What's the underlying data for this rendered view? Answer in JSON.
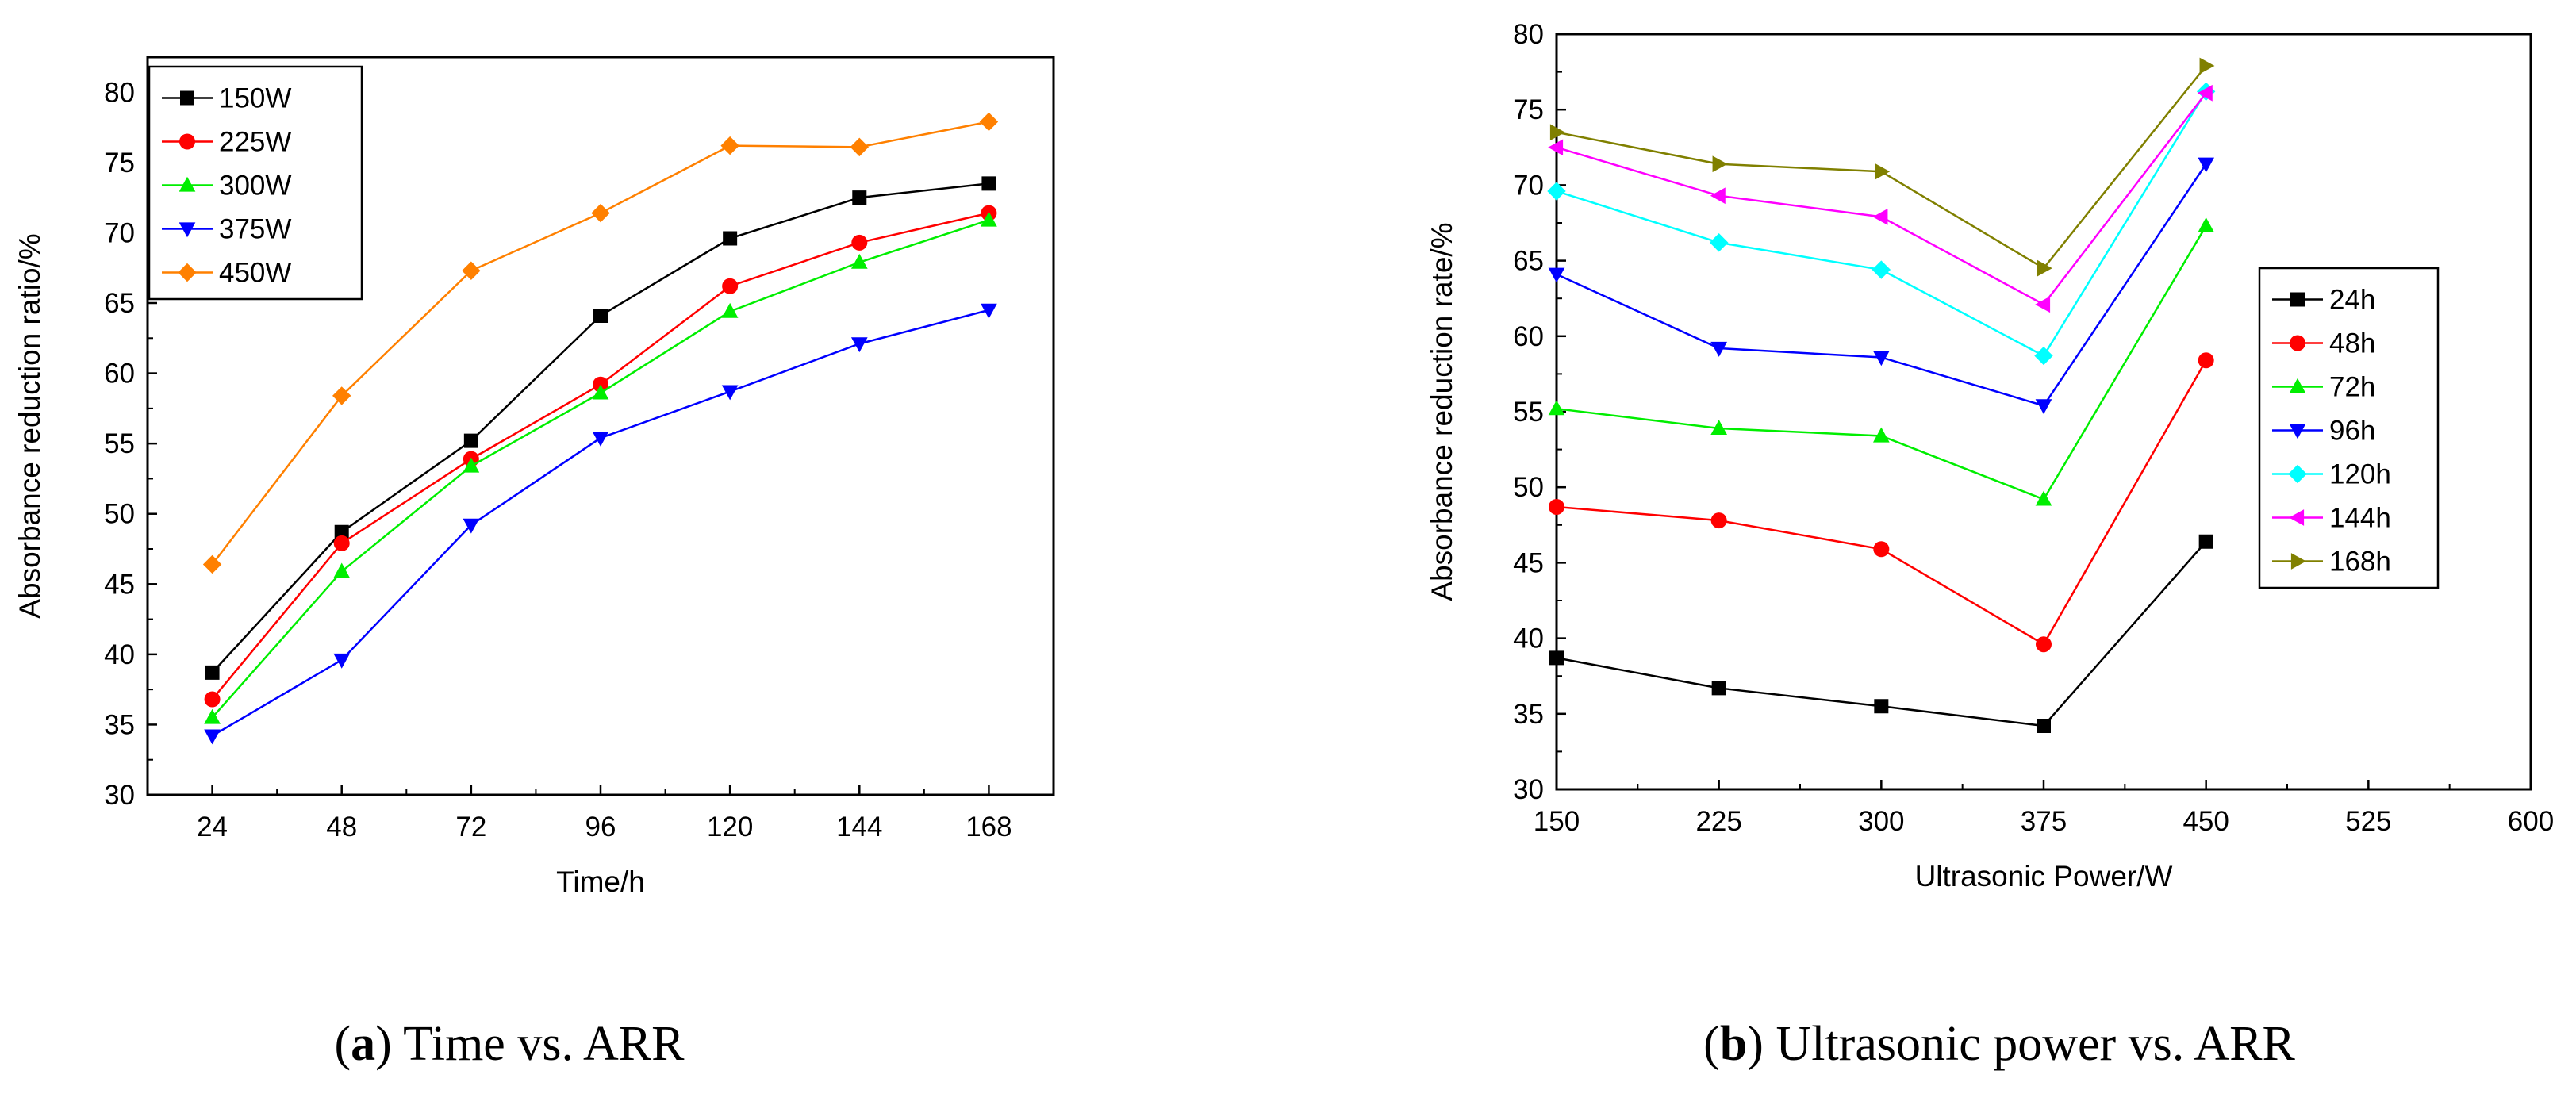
{
  "chart_data": [
    {
      "type": "line",
      "caption": {
        "prefix": "(",
        "letter": "a",
        "text": ") Time vs. ARR"
      },
      "xlabel": "Time/h",
      "ylabel": "Absorbance reduction ratio/%",
      "x": [
        24,
        48,
        72,
        96,
        120,
        144,
        168
      ],
      "xlim": [
        12,
        180
      ],
      "ylim": [
        30,
        82.5
      ],
      "xticks": [
        24,
        48,
        72,
        96,
        120,
        144,
        168
      ],
      "yticks": [
        30,
        35,
        40,
        45,
        50,
        55,
        60,
        65,
        70,
        75,
        80
      ],
      "legend": "top-left",
      "series": [
        {
          "name": "150W",
          "color": "#000000",
          "marker": "square",
          "values": [
            38.7,
            48.7,
            55.2,
            64.1,
            69.6,
            72.5,
            73.5
          ]
        },
        {
          "name": "225W",
          "color": "#ff0000",
          "marker": "circle",
          "values": [
            36.8,
            47.9,
            53.9,
            59.2,
            66.2,
            69.3,
            71.4
          ]
        },
        {
          "name": "300W",
          "color": "#00ee00",
          "marker": "triangle-up",
          "values": [
            35.5,
            45.9,
            53.4,
            58.6,
            64.4,
            67.9,
            70.9
          ]
        },
        {
          "name": "375W",
          "color": "#0000ff",
          "marker": "triangle-down",
          "values": [
            34.2,
            39.6,
            49.2,
            55.4,
            58.7,
            62.1,
            64.5
          ]
        },
        {
          "name": "450W",
          "color": "#ff8000",
          "marker": "diamond",
          "values": [
            46.4,
            58.4,
            67.3,
            71.4,
            76.2,
            76.1,
            77.9
          ]
        }
      ]
    },
    {
      "type": "line",
      "caption": {
        "prefix": "(",
        "letter": "b",
        "text": ") Ultrasonic power vs. ARR"
      },
      "xlabel": "Ultrasonic Power/W",
      "ylabel": "Absorbance reduction rate/%",
      "x": [
        150,
        225,
        300,
        375,
        450
      ],
      "xlim": [
        150,
        600
      ],
      "ylim": [
        30,
        80
      ],
      "xticks": [
        150,
        225,
        300,
        375,
        450,
        525,
        600
      ],
      "yticks": [
        30,
        35,
        40,
        45,
        50,
        55,
        60,
        65,
        70,
        75,
        80
      ],
      "legend": "right",
      "series": [
        {
          "name": "24h",
          "color": "#000000",
          "marker": "square",
          "values": [
            38.7,
            36.7,
            35.5,
            34.2,
            46.4
          ]
        },
        {
          "name": "48h",
          "color": "#ff0000",
          "marker": "circle",
          "values": [
            48.7,
            47.8,
            45.9,
            39.6,
            58.4
          ]
        },
        {
          "name": "72h",
          "color": "#00ee00",
          "marker": "triangle-up",
          "values": [
            55.2,
            53.9,
            53.4,
            49.2,
            67.3
          ]
        },
        {
          "name": "96h",
          "color": "#0000ff",
          "marker": "triangle-down",
          "values": [
            64.1,
            59.2,
            58.6,
            55.4,
            71.4
          ]
        },
        {
          "name": "120h",
          "color": "#00ffff",
          "marker": "diamond",
          "values": [
            69.6,
            66.2,
            64.4,
            58.7,
            76.2
          ]
        },
        {
          "name": "144h",
          "color": "#ff00ff",
          "marker": "triangle-left",
          "values": [
            72.5,
            69.3,
            67.9,
            62.1,
            76.1
          ]
        },
        {
          "name": "168h",
          "color": "#808000",
          "marker": "triangle-right",
          "values": [
            73.5,
            71.4,
            70.9,
            64.5,
            77.9
          ]
        }
      ]
    }
  ]
}
